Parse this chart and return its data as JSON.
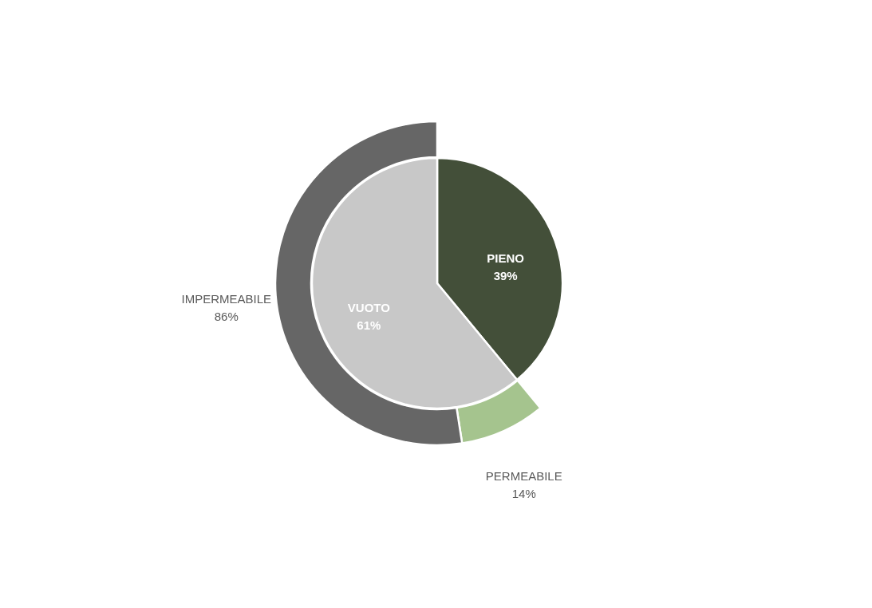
{
  "chart_data": [
    {
      "type": "pie",
      "categories": [
        "PIENO",
        "VUOTO"
      ],
      "values": [
        39,
        61
      ],
      "colors": [
        "#434f39",
        "#c8c8c8"
      ],
      "value_labels": [
        "39%",
        "61%"
      ]
    },
    {
      "type": "donut",
      "categories": [
        "PERMEABILE",
        "IMPERMEABILE"
      ],
      "values": [
        14,
        86
      ],
      "colors": [
        "#a5c48e",
        "#666666"
      ],
      "value_labels": [
        "14%",
        "86%"
      ]
    }
  ]
}
